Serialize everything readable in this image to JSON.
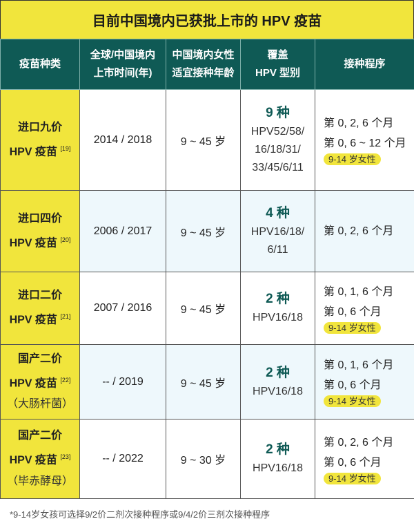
{
  "title": "目前中国境内已获批上市的 HPV 疫苗",
  "headers": [
    "疫苗种类",
    "全球/中国境内上市时间(年)",
    "中国境内女性适宜接种年龄",
    "覆盖 HPV 型别",
    "接种程序"
  ],
  "header_lines": [
    [
      "疫苗种类"
    ],
    [
      "全球/中国境内",
      "上市时间(年)"
    ],
    [
      "中国境内女性",
      "适宜接种年龄"
    ],
    [
      "覆盖",
      "HPV 型别"
    ],
    [
      "接种程序"
    ]
  ],
  "rows": [
    {
      "name1": "进口九价",
      "name2": "HPV 疫苗",
      "ref": "[19]",
      "sub": "",
      "years": "2014 / 2018",
      "age": "9 ~ 45 岁",
      "count": "9 种",
      "types": [
        "HPV52/58/",
        "16/18/31/",
        "33/45/6/11"
      ],
      "schedule": [
        "第 0, 2, 6 个月",
        "第 0, 6 ~ 12 个月"
      ],
      "note": "9-14 岁女性"
    },
    {
      "name1": "进口四价",
      "name2": "HPV 疫苗",
      "ref": "[20]",
      "sub": "",
      "years": "2006 / 2017",
      "age": "9 ~ 45 岁",
      "count": "4 种",
      "types": [
        "HPV16/18/",
        "6/11"
      ],
      "schedule": [
        "第 0, 2, 6 个月"
      ],
      "note": ""
    },
    {
      "name1": "进口二价",
      "name2": "HPV 疫苗",
      "ref": "[21]",
      "sub": "",
      "years": "2007 / 2016",
      "age": "9 ~ 45 岁",
      "count": "2 种",
      "types": [
        "HPV16/18"
      ],
      "schedule": [
        "第 0, 1, 6 个月",
        "第 0, 6 个月"
      ],
      "note": "9-14 岁女性"
    },
    {
      "name1": "国产二价",
      "name2": "HPV 疫苗",
      "ref": "[22]",
      "sub": "（大肠杆菌）",
      "years": "-- / 2019",
      "age": "9 ~ 45 岁",
      "count": "2 种",
      "types": [
        "HPV16/18"
      ],
      "schedule": [
        "第 0, 1, 6 个月",
        "第 0, 6 个月"
      ],
      "note": "9-14 岁女性"
    },
    {
      "name1": "国产二价",
      "name2": "HPV 疫苗",
      "ref": "[23]",
      "sub": "（毕赤酵母）",
      "years": "-- / 2022",
      "age": "9 ~ 30 岁",
      "count": "2 种",
      "types": [
        "HPV16/18"
      ],
      "schedule": [
        "第 0, 2, 6 个月",
        "第 0, 6 个月"
      ],
      "note": "9-14 岁女性"
    }
  ],
  "footnote": "*9-14岁女孩可选择9/2价二剂次接种程序或9/4/2价三剂次接种程序",
  "colors": {
    "yellow": "#f1e53c",
    "teal": "#0f5a55",
    "alt_row": "#eef8fc"
  }
}
